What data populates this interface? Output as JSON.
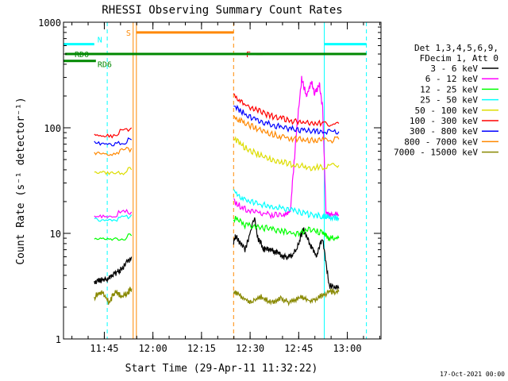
{
  "chart_data": {
    "type": "line",
    "title": "RHESSI Observing Summary Count Rates",
    "xlabel": "Start Time (29-Apr-11 11:32:22)",
    "ylabel": "Count Rate (s⁻¹ detector⁻¹)",
    "yscale": "log",
    "ylim": [
      1,
      1000
    ],
    "xlim_minutes": [
      0,
      98
    ],
    "x_ticks": [
      {
        "label": "11:45",
        "minutes": 12.6
      },
      {
        "label": "12:00",
        "minutes": 27.6
      },
      {
        "label": "12:15",
        "minutes": 42.6
      },
      {
        "label": "12:30",
        "minutes": 57.6
      },
      {
        "label": "12:45",
        "minutes": 72.6
      },
      {
        "label": "13:00",
        "minutes": 87.6
      }
    ],
    "y_ticks": [
      "1",
      "10",
      "100",
      "1000"
    ],
    "legend_header": [
      "Det 1,3,4,5,6,9,",
      "FDecim 1, Att 0"
    ],
    "series": [
      {
        "name": "3 - 6 keV",
        "color": "#000000",
        "segments": [
          {
            "x": [
              9.5,
              12,
              14,
              16,
              18,
              21
            ],
            "y": [
              3.5,
              3.6,
              3.7,
              4.2,
              4.6,
              6
            ]
          },
          {
            "x": [
              52.5,
              53,
              56,
              59,
              60,
              62,
              64,
              66,
              68,
              70,
              72,
              74,
              76,
              78,
              80,
              82,
              85
            ],
            "y": [
              8,
              9.5,
              7,
              14,
              9,
              7,
              7,
              6.5,
              6,
              6,
              7,
              11,
              8,
              6,
              9,
              3.2,
              3
            ]
          }
        ]
      },
      {
        "name": "6 - 12 keV",
        "color": "#ff00ff",
        "segments": [
          {
            "x": [
              9.5,
              15,
              21
            ],
            "y": [
              15,
              15,
              16
            ]
          },
          {
            "x": [
              52.5,
              56,
              60,
              64,
              68,
              70,
              72,
              73.5,
              75,
              76.5,
              77.5,
              79,
              80,
              81,
              82,
              85
            ],
            "y": [
              20,
              17,
              16,
              15,
              15,
              16,
              100,
              290,
              200,
              280,
              210,
              260,
              150,
              16,
              15,
              15
            ]
          }
        ]
      },
      {
        "name": "12 - 25 keV",
        "color": "#00ff00",
        "segments": [
          {
            "x": [
              9.5,
              15,
              21
            ],
            "y": [
              8.5,
              8.5,
              9.5
            ]
          },
          {
            "x": [
              52.5,
              56,
              60,
              64,
              68,
              72,
              76,
              80,
              82,
              85
            ],
            "y": [
              14,
              12,
              11.5,
              11,
              10.5,
              10,
              11,
              10,
              9,
              9
            ]
          }
        ]
      },
      {
        "name": "25 - 50 keV",
        "color": "#00ffff",
        "segments": [
          {
            "x": [
              9.5,
              15,
              21
            ],
            "y": [
              14,
              13.5,
              15
            ]
          },
          {
            "x": [
              52.5,
              56,
              60,
              64,
              68,
              72,
              76,
              80,
              82,
              85
            ],
            "y": [
              25,
              21,
              19,
              18,
              17,
              16,
              15,
              14.5,
              14,
              14
            ]
          }
        ]
      },
      {
        "name": "50 - 100 keV",
        "color": "#dddd00",
        "segments": [
          {
            "x": [
              9.5,
              15,
              21
            ],
            "y": [
              37,
              36,
              40
            ]
          },
          {
            "x": [
              52.5,
              56,
              60,
              64,
              68,
              72,
              76,
              80,
              85
            ],
            "y": [
              80,
              65,
              56,
              50,
              47,
              44,
              42,
              43,
              44
            ]
          }
        ]
      },
      {
        "name": "100 - 300 keV",
        "color": "#ff0000",
        "segments": [
          {
            "x": [
              9.5,
              15,
              21
            ],
            "y": [
              90,
              86,
              100
            ]
          },
          {
            "x": [
              52.5,
              56,
              60,
              64,
              68,
              72,
              76,
              80,
              85
            ],
            "y": [
              200,
              165,
              145,
              130,
              120,
              115,
              110,
              110,
              110
            ]
          }
        ]
      },
      {
        "name": "300 - 800 keV",
        "color": "#0000ff",
        "segments": [
          {
            "x": [
              9.5,
              15,
              21
            ],
            "y": [
              70,
              66,
              77
            ]
          },
          {
            "x": [
              52.5,
              56,
              60,
              64,
              68,
              72,
              76,
              80,
              85
            ],
            "y": [
              165,
              135,
              118,
              108,
              100,
              96,
              93,
              92,
              92
            ]
          }
        ]
      },
      {
        "name": "800 - 7000 keV",
        "color": "#ff8800",
        "segments": [
          {
            "x": [
              9.5,
              15,
              21
            ],
            "y": [
              60,
              57,
              64
            ]
          },
          {
            "x": [
              52.5,
              56,
              60,
              64,
              68,
              72,
              76,
              80,
              85
            ],
            "y": [
              130,
              110,
              97,
              88,
              82,
              78,
              76,
              76,
              78
            ]
          }
        ]
      },
      {
        "name": "7000 - 15000 keV",
        "color": "#888800",
        "segments": [
          {
            "x": [
              9.5,
              12,
              14,
              16,
              18,
              20,
              21
            ],
            "y": [
              2.5,
              2.8,
              2.2,
              2.8,
              2.5,
              2.8,
              3
            ]
          },
          {
            "x": [
              52.5,
              55,
              58,
              61,
              64,
              67,
              70,
              73,
              76,
              79,
              82,
              85
            ],
            "y": [
              2.8,
              2.5,
              2.2,
              2.5,
              2.2,
              2.4,
              2.2,
              2.5,
              2.3,
              2.5,
              2.8,
              2.8
            ]
          }
        ]
      }
    ],
    "state_bars": [
      {
        "label": "N",
        "color": "#00ffff",
        "level": 620,
        "x": [
          [
            0,
            9.5
          ],
          [
            80.5,
            93.5
          ]
        ]
      },
      {
        "label": "S",
        "color": "#ff8800",
        "level": 800,
        "x": [
          [
            22.5,
            52.5
          ]
        ]
      },
      {
        "label": "F",
        "color": "#ff0000",
        "level": 500,
        "x": [
          [
            59.5,
            61.5
          ],
          [
            70,
            78
          ]
        ]
      },
      {
        "label": "RD0",
        "color": "#008800",
        "level": 500,
        "x": [
          [
            0.5,
            93.5
          ]
        ]
      },
      {
        "label": "RD6",
        "color": "#008800",
        "level": 430,
        "x": [
          [
            0,
            10
          ]
        ]
      }
    ],
    "vertical_lines": [
      {
        "color": "#00ffff",
        "style": "solid",
        "x": 0
      },
      {
        "color": "#00ffff",
        "style": "dashed",
        "x": 13.5
      },
      {
        "color": "#ff8800",
        "style": "solid",
        "x": 21.5
      },
      {
        "color": "#ff8800",
        "style": "solid",
        "x": 22.5
      },
      {
        "color": "#ff8800",
        "style": "dashed",
        "x": 52.5
      },
      {
        "color": "#00ffff",
        "style": "solid",
        "x": 80.5
      },
      {
        "color": "#00ffff",
        "style": "dashed",
        "x": 93.5
      }
    ],
    "grid": false,
    "legend_position": "right"
  },
  "footer": {
    "date": "17-Oct-2021 00:00"
  }
}
